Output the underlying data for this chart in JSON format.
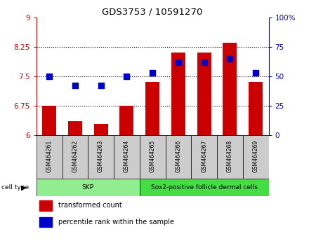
{
  "title": "GDS3753 / 10591270",
  "samples": [
    "GSM464261",
    "GSM464262",
    "GSM464263",
    "GSM464264",
    "GSM464265",
    "GSM464266",
    "GSM464267",
    "GSM464268",
    "GSM464269"
  ],
  "transformed_count": [
    6.75,
    6.35,
    6.28,
    6.75,
    7.35,
    8.1,
    8.1,
    8.35,
    7.35
  ],
  "percentile_rank": [
    50,
    42,
    42,
    50,
    53,
    62,
    62,
    65,
    53
  ],
  "ylim_left": [
    6,
    9
  ],
  "ylim_right": [
    0,
    100
  ],
  "yticks_left": [
    6,
    6.75,
    7.5,
    8.25,
    9
  ],
  "yticks_right": [
    0,
    25,
    50,
    75,
    100
  ],
  "ytick_labels_left": [
    "6",
    "6.75",
    "7.5",
    "8.25",
    "9"
  ],
  "ytick_labels_right": [
    "0",
    "25",
    "50",
    "75",
    "100%"
  ],
  "bar_color": "#cc0000",
  "dot_color": "#0000cc",
  "bar_bottom": 6.0,
  "cell_type_groups": [
    {
      "label": "SKP",
      "start": 0,
      "end": 4,
      "color": "#90ee90"
    },
    {
      "label": "Sox2-positive follicle dermal cells",
      "start": 4,
      "end": 9,
      "color": "#44dd44"
    }
  ],
  "cell_type_label": "cell type",
  "legend_bar_label": "transformed count",
  "legend_dot_label": "percentile rank within the sample",
  "hlines": [
    6.75,
    7.5,
    8.25
  ],
  "background_color": "#ffffff",
  "xlabel_box_color": "#cccccc"
}
